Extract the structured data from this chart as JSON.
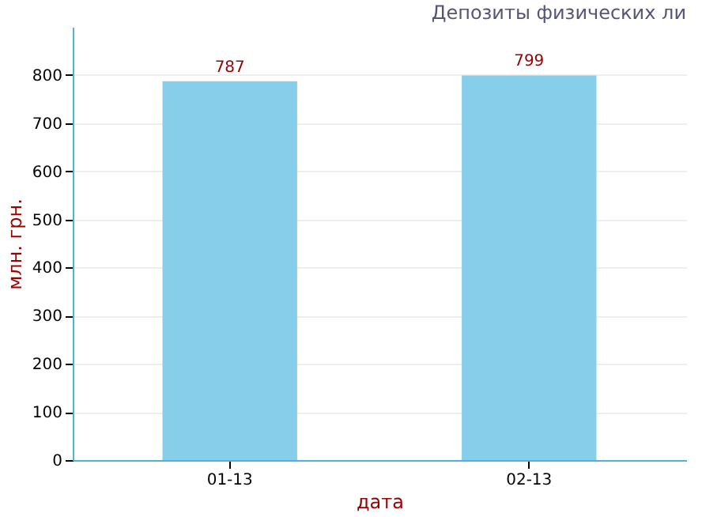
{
  "chart_data": {
    "type": "bar",
    "title": "Депозиты физических ли",
    "xlabel": "дата",
    "ylabel": "млн. грн.",
    "categories": [
      "01-13",
      "02-13"
    ],
    "values": [
      787,
      799
    ],
    "color": "#87ceeb",
    "ylim": [
      0,
      900
    ],
    "yticks": [
      0,
      100,
      200,
      300,
      400,
      500,
      600,
      700,
      800
    ],
    "grid": "y",
    "data_labels": true
  }
}
